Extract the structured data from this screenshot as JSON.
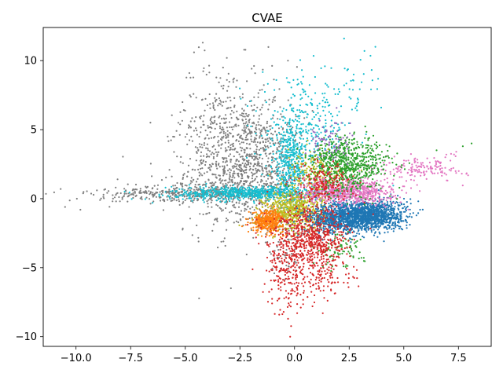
{
  "chart_data": {
    "type": "scatter",
    "title": "CVAE",
    "xlabel": "",
    "ylabel": "",
    "xlim": [
      -11.5,
      9.0
    ],
    "ylim": [
      -10.7,
      12.4
    ],
    "xticks": [
      -10.0,
      -7.5,
      -5.0,
      -2.5,
      0.0,
      2.5,
      5.0,
      7.5
    ],
    "xtick_labels": [
      "−10.0",
      "−7.5",
      "−5.0",
      "−2.5",
      "0.0",
      "2.5",
      "5.0",
      "7.5"
    ],
    "yticks": [
      -10,
      -5,
      0,
      5,
      10
    ],
    "ytick_labels": [
      "−10",
      "−5",
      "0",
      "5",
      "10"
    ],
    "grid": false,
    "legend": "none",
    "series": [
      {
        "color": "#7f7f7f",
        "clusters": [
          {
            "cx": -2.2,
            "cy": 2.0,
            "sx": 1.4,
            "sy": 2.2,
            "n": 1100
          },
          {
            "cx": -4.5,
            "cy": 0.4,
            "sx": 1.8,
            "sy": 0.25,
            "n": 350
          },
          {
            "cx": -7.5,
            "cy": 0.3,
            "sx": 1.6,
            "sy": 0.5,
            "n": 60
          },
          {
            "cx": -3.0,
            "cy": 6.0,
            "sx": 1.2,
            "sy": 2.0,
            "n": 250
          },
          {
            "cx": -0.5,
            "cy": -3.5,
            "sx": 0.4,
            "sy": 1.0,
            "n": 60
          }
        ],
        "points": [
          [
            -10.7,
            0.7
          ],
          [
            -10.5,
            -0.6
          ],
          [
            -9.8,
            -0.8
          ],
          [
            -8.9,
            -0.1
          ],
          [
            -4.2,
            11.3
          ],
          [
            -4.6,
            10.6
          ],
          [
            -3.1,
            10.2
          ],
          [
            -0.3,
            10.0
          ]
        ]
      },
      {
        "color": "#17becf",
        "clusters": [
          {
            "cx": -2.0,
            "cy": 0.4,
            "sx": 1.8,
            "sy": 0.25,
            "n": 700
          },
          {
            "cx": -0.2,
            "cy": 2.3,
            "sx": 0.4,
            "sy": 1.6,
            "n": 400
          },
          {
            "cx": 0.5,
            "cy": 5.0,
            "sx": 1.0,
            "sy": 1.8,
            "n": 300
          },
          {
            "cx": 2.8,
            "cy": 8.0,
            "sx": 0.6,
            "sy": 1.2,
            "n": 40
          }
        ],
        "points": [
          [
            3.7,
            11.0
          ],
          [
            3.2,
            10.7
          ],
          [
            -6.5,
            -0.3
          ]
        ]
      },
      {
        "color": "#bcbd22",
        "clusters": [
          {
            "cx": 0.0,
            "cy": -0.9,
            "sx": 0.7,
            "sy": 0.7,
            "n": 600
          },
          {
            "cx": 1.0,
            "cy": 1.5,
            "sx": 0.7,
            "sy": 1.0,
            "n": 250
          }
        ],
        "points": []
      },
      {
        "color": "#ff7f0e",
        "clusters": [
          {
            "cx": -1.2,
            "cy": -1.6,
            "sx": 0.35,
            "sy": 0.4,
            "n": 400
          }
        ],
        "points": [
          [
            -2.4,
            -2.0
          ]
        ]
      },
      {
        "color": "#1f77b4",
        "clusters": [
          {
            "cx": 3.2,
            "cy": -1.2,
            "sx": 0.9,
            "sy": 0.55,
            "n": 1500
          },
          {
            "cx": 1.8,
            "cy": -1.6,
            "sx": 0.7,
            "sy": 0.5,
            "n": 400
          }
        ],
        "points": []
      },
      {
        "color": "#e377c2",
        "clusters": [
          {
            "cx": 2.5,
            "cy": 0.5,
            "sx": 1.0,
            "sy": 0.45,
            "n": 700
          },
          {
            "cx": 5.8,
            "cy": 2.2,
            "sx": 1.0,
            "sy": 0.4,
            "n": 150
          }
        ],
        "points": [
          [
            7.4,
            3.4
          ],
          [
            7.3,
            3.2
          ],
          [
            6.9,
            3.0
          ]
        ]
      },
      {
        "color": "#2ca02c",
        "clusters": [
          {
            "cx": 2.5,
            "cy": 2.5,
            "sx": 0.9,
            "sy": 1.0,
            "n": 700
          },
          {
            "cx": 2.0,
            "cy": -3.8,
            "sx": 0.6,
            "sy": 0.6,
            "n": 80
          }
        ],
        "points": [
          [
            8.1,
            4.0
          ],
          [
            7.7,
            3.8
          ],
          [
            6.5,
            3.5
          ]
        ]
      },
      {
        "color": "#d62728",
        "clusters": [
          {
            "cx": 0.7,
            "cy": -3.0,
            "sx": 0.9,
            "sy": 1.1,
            "n": 700
          },
          {
            "cx": -0.3,
            "cy": -6.0,
            "sx": 0.5,
            "sy": 1.2,
            "n": 150
          },
          {
            "cx": 1.5,
            "cy": -5.5,
            "sx": 0.7,
            "sy": 1.0,
            "n": 100
          },
          {
            "cx": 1.3,
            "cy": 1.0,
            "sx": 0.6,
            "sy": 0.8,
            "n": 200
          }
        ],
        "points": [
          [
            -0.2,
            -10.0
          ],
          [
            -0.5,
            -8.2
          ],
          [
            -0.7,
            -8.4
          ]
        ]
      },
      {
        "color": "#9467bd",
        "clusters": [
          {
            "cx": 1.6,
            "cy": 4.2,
            "sx": 0.5,
            "sy": 0.9,
            "n": 80
          }
        ],
        "points": []
      }
    ]
  }
}
